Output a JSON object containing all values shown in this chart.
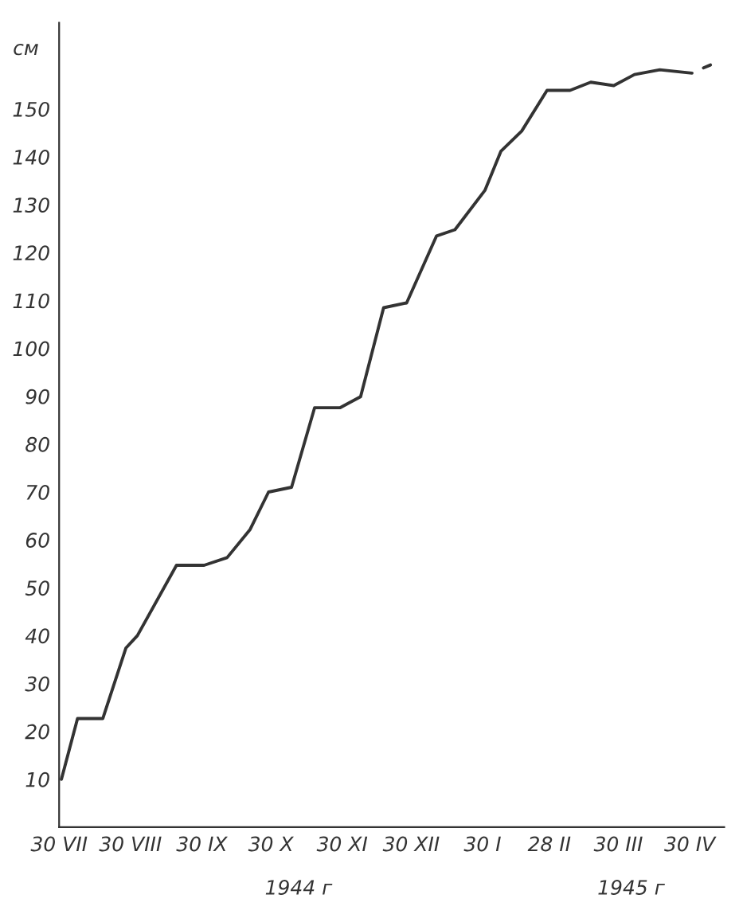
{
  "chart_data": {
    "type": "line",
    "ylabel": "см",
    "x": [
      "1944-07-31",
      "1944-08-07",
      "1944-08-18",
      "1944-08-28",
      "1944-09-02",
      "1944-09-19",
      "1944-10-01",
      "1944-10-11",
      "1944-10-21",
      "1944-10-29",
      "1944-11-08",
      "1944-11-18",
      "1944-11-29",
      "1944-12-08",
      "1944-12-18",
      "1944-12-28",
      "1945-01-10",
      "1945-01-18",
      "1945-01-31",
      "1945-02-07",
      "1945-02-16",
      "1945-02-27",
      "1945-03-09",
      "1945-03-18",
      "1945-03-28",
      "1945-04-06",
      "1945-04-17",
      "1945-05-01",
      "1945-05-03",
      "1945-05-06",
      "1945-05-09"
    ],
    "series": [
      {
        "color": "#333333",
        "values": [
          10,
          22.7,
          22.7,
          37.4,
          40,
          54.7,
          54.7,
          56.3,
          62.2,
          70,
          71,
          87.6,
          87.6,
          89.9,
          108.5,
          109.5,
          123.5,
          124.8,
          133,
          141.2,
          145.4,
          153.9,
          153.9,
          155.6,
          154.9,
          157.2,
          158.2,
          157.5,
          null,
          158.6,
          159.2
        ]
      }
    ],
    "xlim": [
      "1944-07-30",
      "1945-05-15"
    ],
    "xticks": [
      {
        "value": "1944-07-30",
        "label": "30 VII"
      },
      {
        "value": "1944-08-30",
        "label": "30 VIII"
      },
      {
        "value": "1944-09-30",
        "label": "30 IX"
      },
      {
        "value": "1944-10-30",
        "label": "30 X"
      },
      {
        "value": "1944-11-30",
        "label": "30 XI"
      },
      {
        "value": "1944-12-30",
        "label": "30 XII"
      },
      {
        "value": "1945-01-30",
        "label": "30 I"
      },
      {
        "value": "1945-02-28",
        "label": "28 II"
      },
      {
        "value": "1945-03-30",
        "label": "30 III"
      },
      {
        "value": "1945-04-30",
        "label": "30 IV"
      }
    ],
    "ylim": [
      0,
      168
    ],
    "yticks": [
      10,
      20,
      30,
      40,
      50,
      60,
      70,
      80,
      90,
      100,
      110,
      120,
      130,
      140,
      150
    ],
    "annotations": [
      "1944 г",
      "1945 г"
    ],
    "grid": false,
    "legend": false,
    "marker": "none",
    "line_style": "solid"
  }
}
